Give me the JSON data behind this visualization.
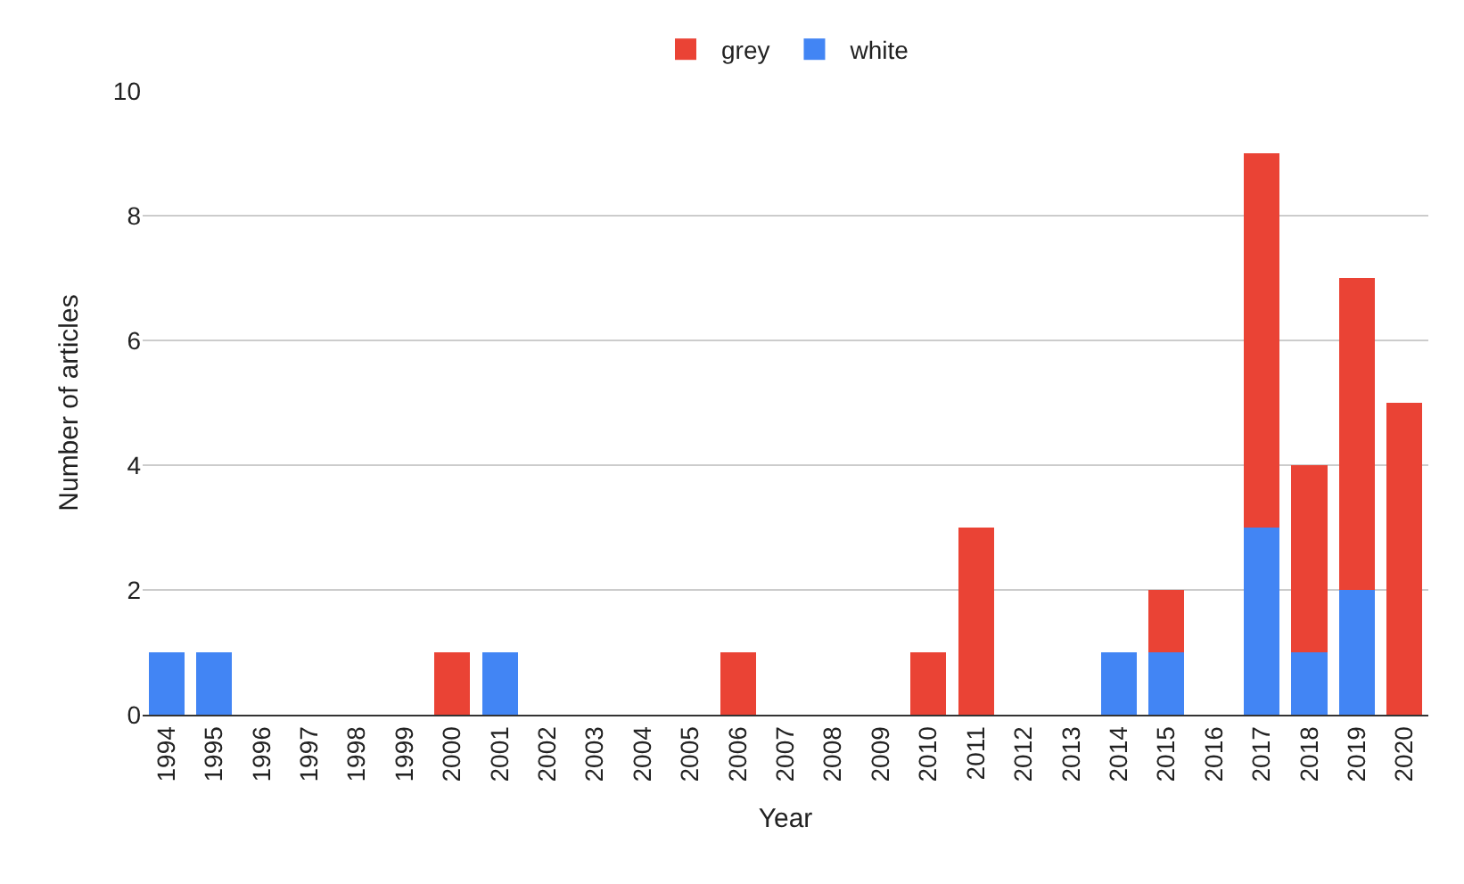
{
  "chart_data": {
    "type": "bar",
    "stacked": true,
    "xlabel": "Year",
    "ylabel": "Number of articles",
    "categories": [
      "1994",
      "1995",
      "1996",
      "1997",
      "1998",
      "1999",
      "2000",
      "2001",
      "2002",
      "2003",
      "2004",
      "2005",
      "2006",
      "2007",
      "2008",
      "2009",
      "2010",
      "2011",
      "2012",
      "2013",
      "2014",
      "2015",
      "2016",
      "2017",
      "2018",
      "2019",
      "2020"
    ],
    "series": [
      {
        "name": "white",
        "color": "#4285f4",
        "values": [
          1,
          1,
          0,
          0,
          0,
          0,
          0,
          1,
          0,
          0,
          0,
          0,
          0,
          0,
          0,
          0,
          0,
          0,
          0,
          0,
          1,
          1,
          0,
          3,
          1,
          2,
          0
        ]
      },
      {
        "name": "grey",
        "color": "#ea4335",
        "values": [
          0,
          0,
          0,
          0,
          0,
          0,
          1,
          0,
          0,
          0,
          0,
          0,
          1,
          0,
          0,
          0,
          1,
          3,
          0,
          0,
          0,
          1,
          0,
          6,
          3,
          5,
          5
        ]
      }
    ],
    "ylim": [
      0,
      10
    ],
    "yticks": [
      0,
      2,
      4,
      6,
      8,
      10
    ],
    "grid": "y",
    "legend": "top"
  }
}
